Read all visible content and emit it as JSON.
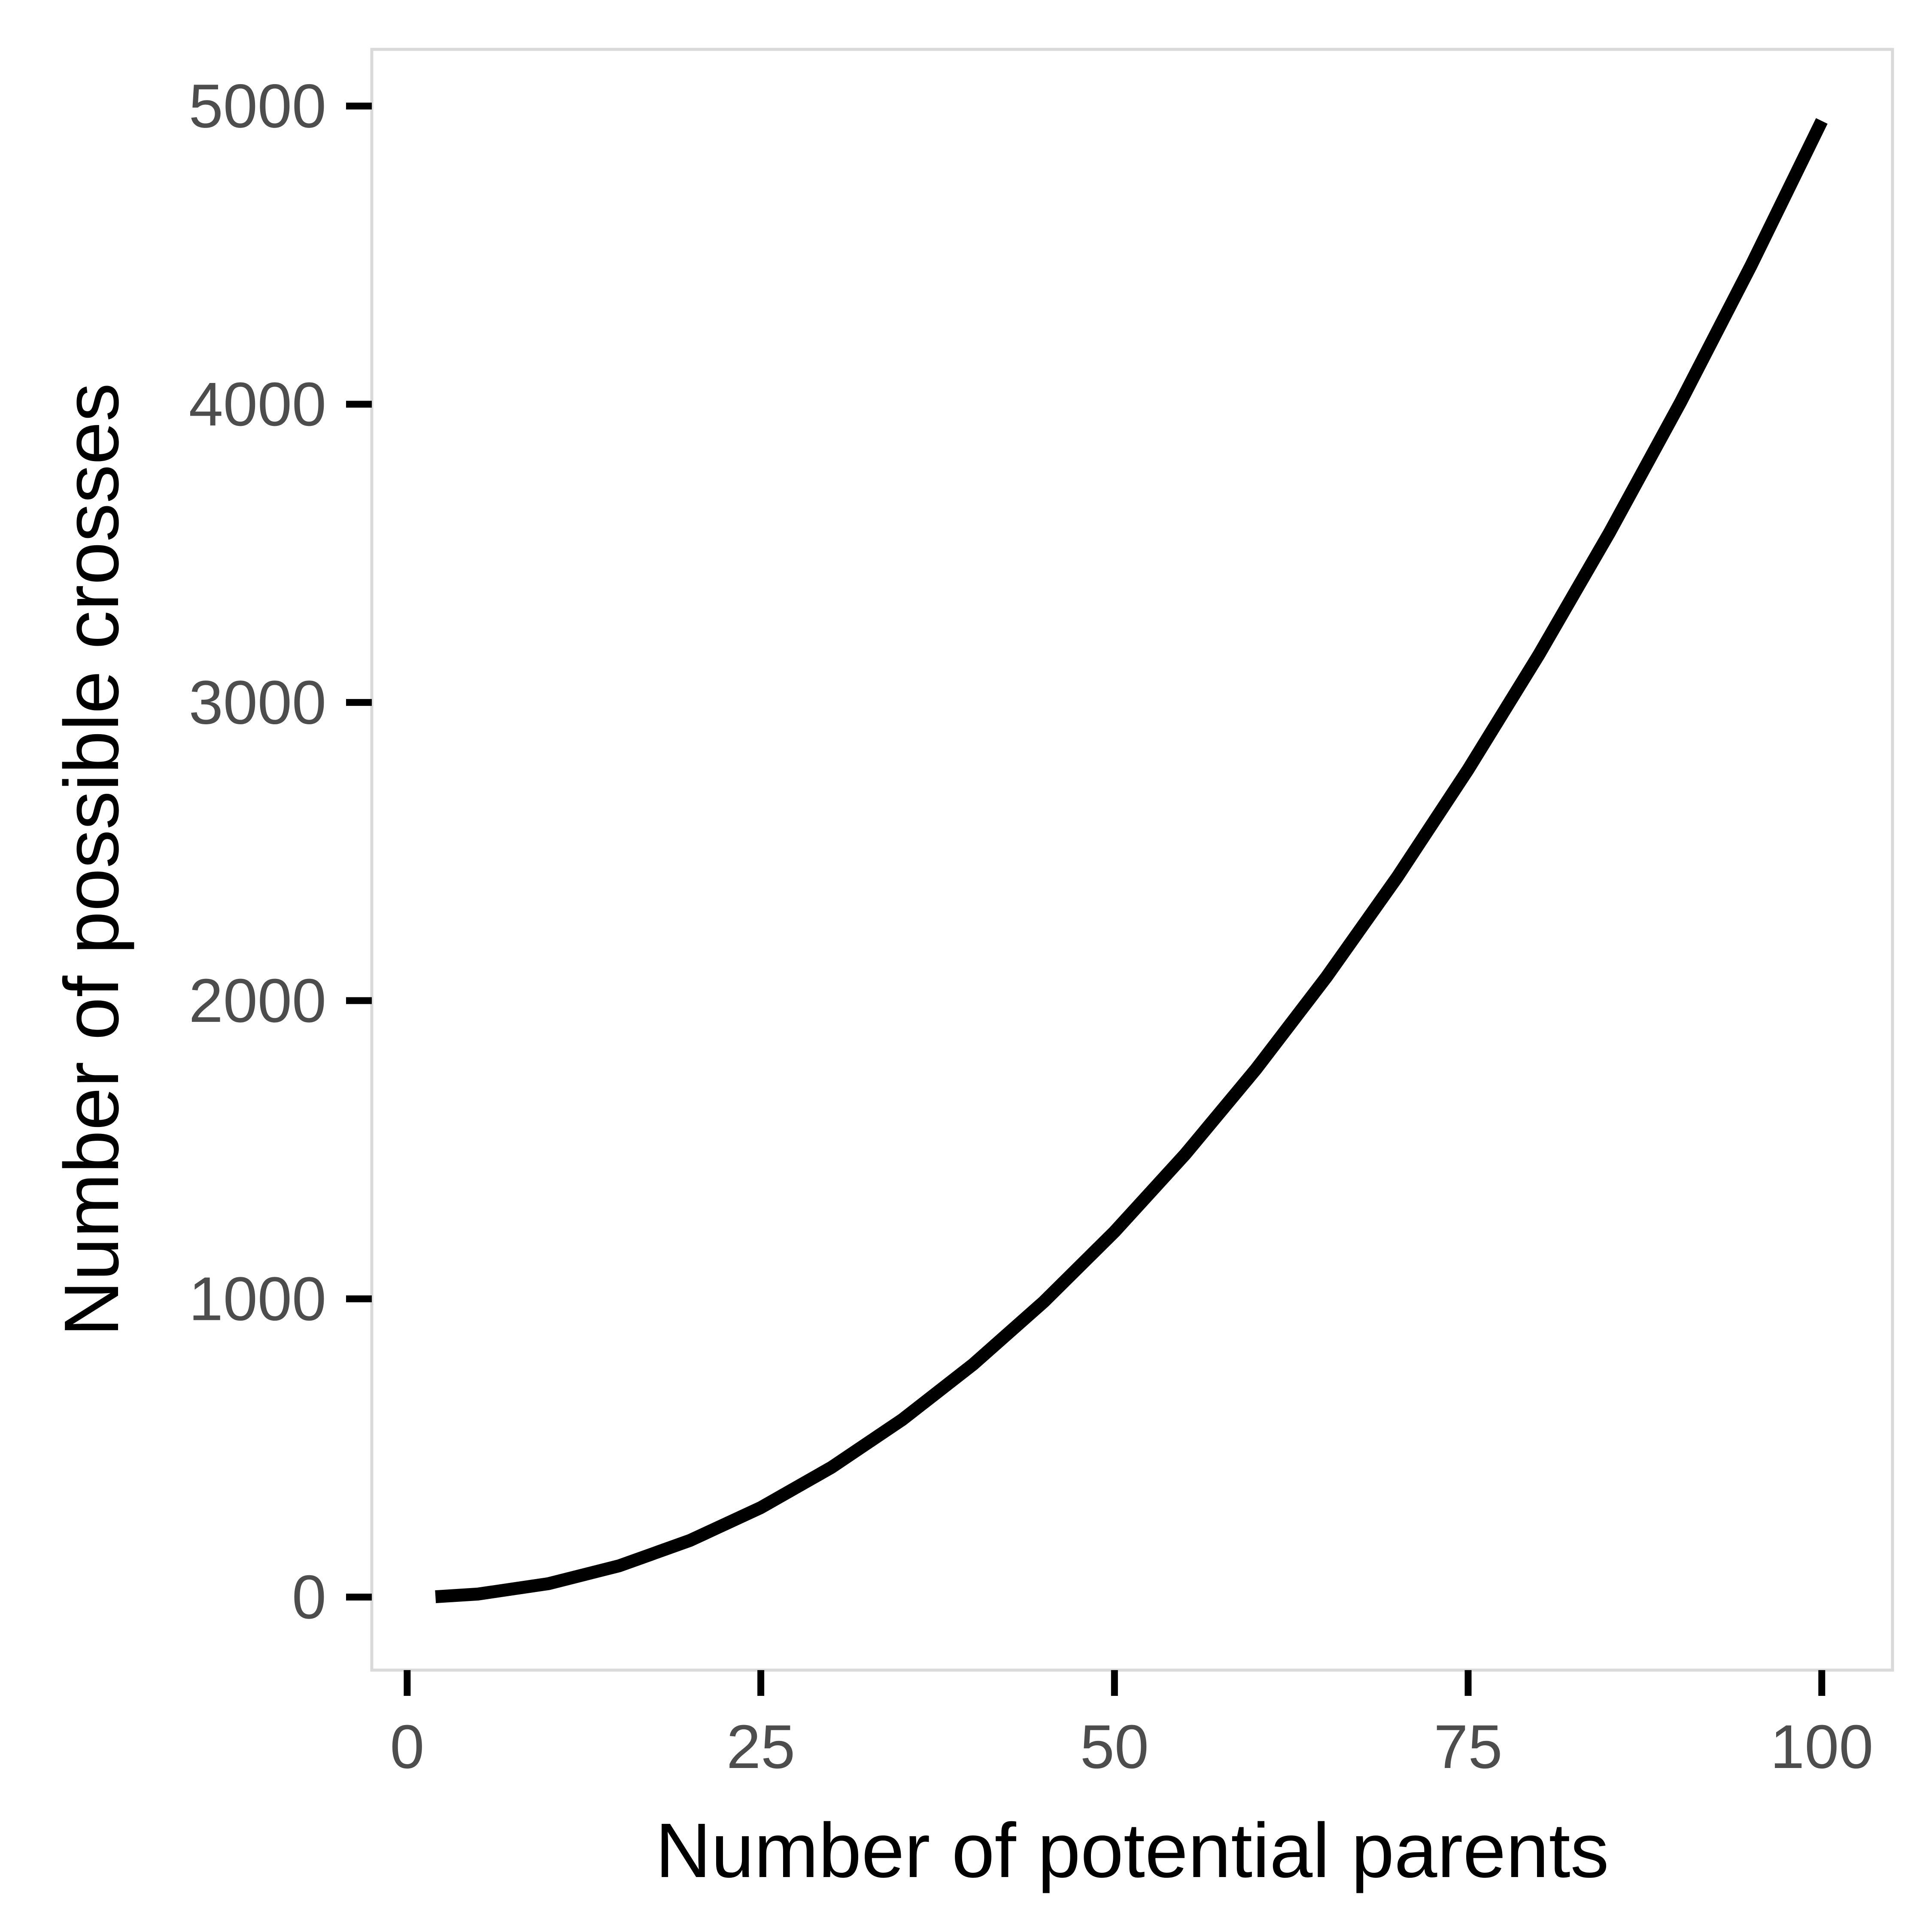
{
  "chart_data": {
    "type": "line",
    "title": "",
    "xlabel": "Number of potential parents",
    "ylabel": "Number of possible crosses",
    "xlim": [
      -2.5,
      105
    ],
    "ylim": [
      -245,
      5190
    ],
    "xticks": [
      0,
      25,
      50,
      75,
      100
    ],
    "xtick_labels": [
      "0",
      "25",
      "50",
      "75",
      "100"
    ],
    "yticks": [
      0,
      1000,
      2000,
      3000,
      4000,
      5000
    ],
    "ytick_labels": [
      "0",
      "1000",
      "2000",
      "3000",
      "4000",
      "5000"
    ],
    "grid": false,
    "legend": "none",
    "series": [
      {
        "x": [
          2,
          5,
          10,
          15,
          20,
          25,
          30,
          35,
          40,
          45,
          50,
          55,
          60,
          65,
          70,
          75,
          80,
          85,
          90,
          95,
          100
        ],
        "y": [
          1,
          10,
          45,
          105,
          190,
          300,
          435,
          595,
          780,
          990,
          1225,
          1485,
          1770,
          2080,
          2415,
          2775,
          3160,
          3570,
          4005,
          4465,
          4950
        ]
      }
    ],
    "line_color": "#000000",
    "panel_border_color": "#d9d9d9",
    "tick_color": "#000000"
  }
}
